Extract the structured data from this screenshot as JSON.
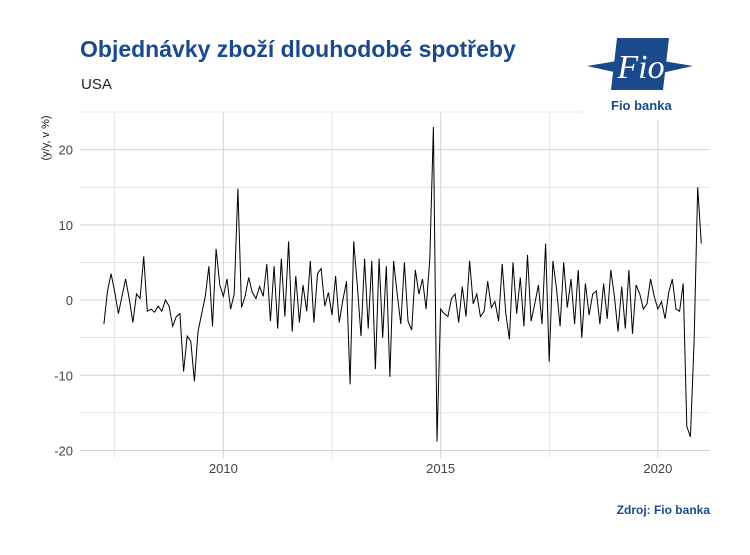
{
  "header": {
    "title": "Objednávky zboží dlouhodobé spotřeby",
    "subtitle": "USA"
  },
  "logo": {
    "name": "fio-logo",
    "word": "Fio",
    "text": "Fio banka"
  },
  "source": "Zdroj: Fio banka",
  "colors": {
    "brand": "#1b4a8c",
    "line": "#000000",
    "grid": "#d3d3d3"
  },
  "chart_data": {
    "type": "line",
    "title": "Objednávky zboží dlouhodobé spotřeby",
    "subtitle": "USA",
    "xlabel": "",
    "ylabel": "(y/y, v %)",
    "ylim": [
      -21,
      25
    ],
    "xlim": [
      2006.7,
      2021.2
    ],
    "x_ticks": [
      2010,
      2015,
      2020
    ],
    "y_ticks": [
      -20,
      -10,
      0,
      10,
      20
    ],
    "grid": true,
    "legend": "none",
    "series": [
      {
        "start": 2007.25,
        "step": 0.0833333,
        "values": [
          -3.2,
          1.2,
          3.5,
          1.0,
          -1.8,
          0.5,
          2.8,
          0.2,
          -3.0,
          0.8,
          0.2,
          5.8,
          -1.5,
          -1.2,
          -1.6,
          -0.8,
          -1.5,
          0.0,
          -0.8,
          -3.5,
          -2.2,
          -1.8,
          -9.5,
          -4.8,
          -5.5,
          -10.8,
          -4.2,
          -1.8,
          0.5,
          4.5,
          -3.5,
          6.8,
          2.0,
          0.5,
          2.8,
          -1.2,
          0.8,
          14.8,
          -1.0,
          0.5,
          3.0,
          1.0,
          0.2,
          1.8,
          0.5,
          4.8,
          -2.8,
          4.5,
          -3.8,
          5.5,
          -2.2,
          7.8,
          -4.2,
          3.2,
          -3.0,
          2.0,
          -1.5,
          5.2,
          -3.0,
          3.5,
          4.2,
          -0.8,
          1.0,
          -2.0,
          3.2,
          -3.0,
          0.0,
          2.5,
          -11.2,
          7.8,
          2.0,
          -4.8,
          5.5,
          -3.8,
          5.2,
          -9.2,
          5.5,
          -5.0,
          4.5,
          -10.2,
          5.2,
          0.8,
          -3.2,
          5.0,
          -2.8,
          -4.0,
          4.0,
          0.8,
          2.8,
          -1.2,
          5.5,
          23.0,
          -18.8,
          -1.2,
          -1.8,
          -2.2,
          0.2,
          0.8,
          -3.0,
          1.8,
          -2.2,
          5.2,
          -0.5,
          0.8,
          -2.2,
          -1.5,
          2.5,
          -1.0,
          -0.2,
          -2.8,
          4.8,
          -1.8,
          -5.2,
          5.0,
          -1.8,
          3.0,
          -3.5,
          6.0,
          -2.8,
          -0.5,
          2.0,
          -3.2,
          7.5,
          -8.2,
          5.2,
          1.5,
          -3.5,
          5.0,
          -1.0,
          2.8,
          -3.2,
          4.0,
          -5.0,
          2.2,
          -2.0,
          0.8,
          1.2,
          -3.2,
          2.2,
          -2.5,
          4.0,
          0.5,
          -4.2,
          1.8,
          -3.8,
          4.0,
          -4.5,
          2.0,
          0.8,
          -1.2,
          -0.5,
          2.8,
          0.5,
          -1.2,
          -0.2,
          -2.5,
          1.0,
          2.8,
          -1.2,
          -1.5,
          2.2,
          -16.8,
          -18.2,
          -5.5,
          15.0,
          7.5
        ]
      }
    ]
  }
}
